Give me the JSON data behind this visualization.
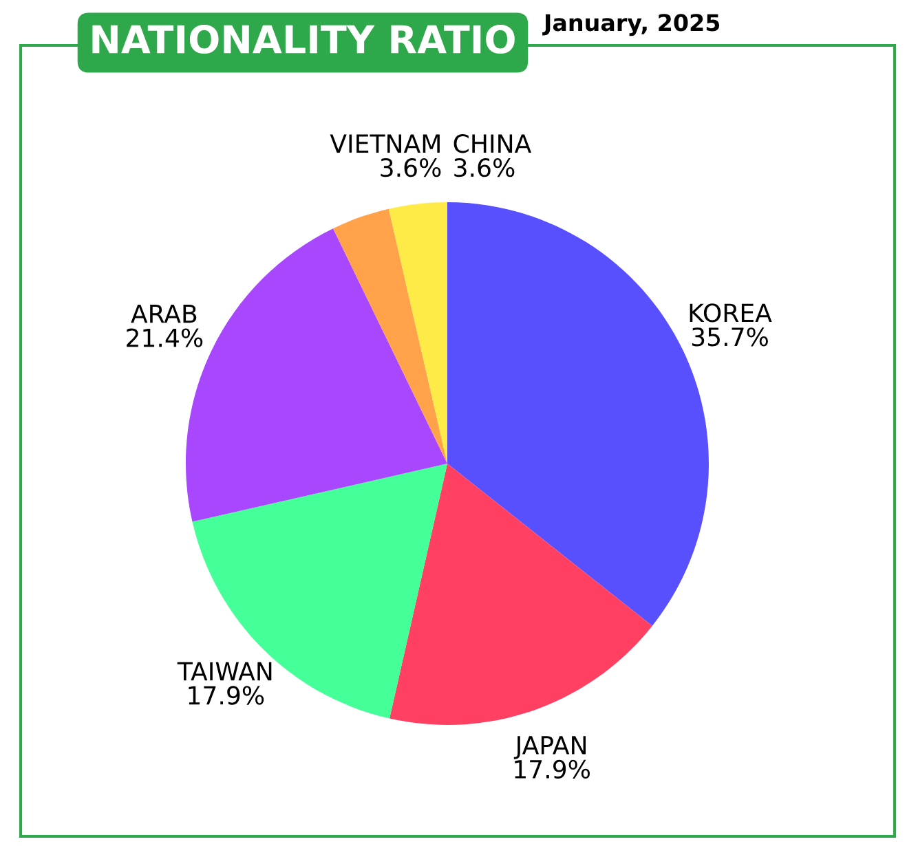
{
  "chart_data": {
    "type": "pie",
    "title": "NATIONALITY RATIO",
    "subtitle": "January, 2025",
    "categories": [
      "KOREA",
      "JAPAN",
      "TAIWAN",
      "ARAB",
      "VIETNAM",
      "CHINA"
    ],
    "values": [
      35.7,
      17.9,
      17.9,
      21.4,
      3.6,
      3.6
    ],
    "colors": [
      "#5850ff",
      "#ff4062",
      "#45ff98",
      "#a947ff",
      "#ffa24a",
      "#ffeb47"
    ],
    "value_labels": [
      "35.7%",
      "17.9%",
      "17.9%",
      "21.4%",
      "3.6%",
      "3.6%"
    ],
    "legend": false
  }
}
